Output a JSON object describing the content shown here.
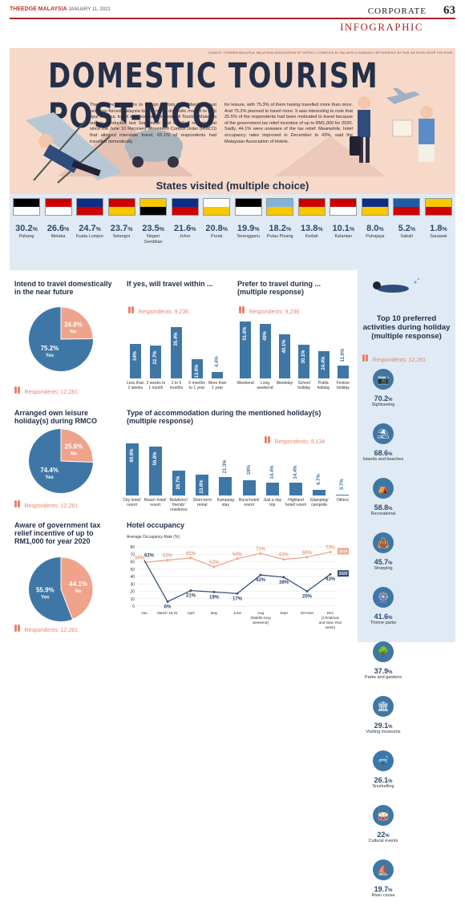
{
  "header": {
    "brand": "THEEDGE MALAYSIA",
    "date": "JANUARY 11, 2021",
    "section": "CORPORATE",
    "page": "63",
    "subsection": "INFOGRAPHIC"
  },
  "hero": {
    "credits": "SOURCE: TOURISM MALAYSIA, MALAYSIAN ASSOCIATION OF HOTELS  |  COMPILED BY NALANTH A GANDAM  |  INFOGRAPHIC BY NUR IZA MOHD NOOR THE EDGE",
    "title": "DOMESTIC TOURISM POST-MCO",
    "intro_col1": "The closure of borders to foreign tourists from March 18 last year has forced Malaysia to turn to the domestic market to help spur the tour, travel and hospitality industry. A Tourism Malaysia survey conducted last September and October reveals that since the June 10 Recovery Movement Control Order (RMCO) that allowed interstate travel, 65.1% of respondents had travelled domestically",
    "intro_col2": "for leisure, with 75.3% of them having travelled more than once. And 75.2% planned to travel more. It was interesting to note that 25.5% of the respondents had been motivated to travel because of the government tax relief incentive of up to RM1,000 for 2020. Sadly, 44.1% were unaware of the tax relief. Meanwhile, hotel occupancy rates improved in December to 43%, said the Malaysian Association of Hotels."
  },
  "states": {
    "title": "States visited (multiple choice)",
    "items": [
      {
        "pct": "30.2",
        "name": "Pahang",
        "flag": [
          "#000000",
          "#ffffff"
        ]
      },
      {
        "pct": "26.6",
        "name": "Melaka",
        "flag": [
          "#cc0000",
          "#ffffff"
        ]
      },
      {
        "pct": "24.7",
        "name": "Kuala Lumpur",
        "flag": [
          "#0a2f8a",
          "#cc0000"
        ]
      },
      {
        "pct": "23.7",
        "name": "Selangor",
        "flag": [
          "#cc0000",
          "#f6c800"
        ]
      },
      {
        "pct": "23.5",
        "name": "Negeri Sembilan",
        "flag": [
          "#f6c800",
          "#000000"
        ]
      },
      {
        "pct": "21.6",
        "name": "Johor",
        "flag": [
          "#0a2f8a",
          "#cc0000"
        ]
      },
      {
        "pct": "20.8",
        "name": "Perak",
        "flag": [
          "#ffffff",
          "#f6c800"
        ]
      },
      {
        "pct": "19.9",
        "name": "Terengganu",
        "flag": [
          "#000000",
          "#ffffff"
        ]
      },
      {
        "pct": "18.2",
        "name": "Pulau Pinang",
        "flag": [
          "#7fb4e0",
          "#f6c800"
        ]
      },
      {
        "pct": "13.8",
        "name": "Kedah",
        "flag": [
          "#cc0000",
          "#f6c800"
        ]
      },
      {
        "pct": "10.1",
        "name": "Kelantan",
        "flag": [
          "#cc0000",
          "#ffffff"
        ]
      },
      {
        "pct": "8.0",
        "name": "Putrajaya",
        "flag": [
          "#0a2f8a",
          "#f6c800"
        ]
      },
      {
        "pct": "5.2",
        "name": "Sabah",
        "flag": [
          "#1a5ea8",
          "#cc0000"
        ]
      },
      {
        "pct": "1.8",
        "name": "Sarawak",
        "flag": [
          "#f6c800",
          "#cc0000"
        ]
      }
    ]
  },
  "intend": {
    "title": "Intend to travel domestically in the near future",
    "yes_pct": "75.2%",
    "yes": "Yes",
    "no_pct": "24.8%",
    "no": "No",
    "respondents": "Respondents: 12,281"
  },
  "when": {
    "title": "If yes, will travel within ...",
    "respondents": "Respondents: 9,236"
  },
  "prefer": {
    "title": "Prefer to travel during ... (multiple response)",
    "respondents": "Respondents: 9,236"
  },
  "arranged": {
    "title": "Arranged own leisure holiday(s) during RMCO",
    "yes_pct": "74.4%",
    "yes": "Yes",
    "no_pct": "25.6%",
    "no": "No",
    "respondents": "Respondents: 12,281"
  },
  "accom": {
    "title": "Type of accommodation during the mentioned holiday(s) (multiple response)",
    "respondents": "Respondents: 9,134"
  },
  "aware": {
    "title": "Aware of government tax relief incentive of up to RM1,000 for year 2020",
    "yes_pct": "55.9%",
    "yes": "Yes",
    "no_pct": "44.1%",
    "no": "No",
    "respondents": "Respondents: 12,281"
  },
  "occupancy": {
    "title": "Hotel occupancy",
    "ylabel": "Average Occupancy Rate (%)"
  },
  "activities": {
    "title": "Top 10 preferred activities during holiday (multiple response)",
    "respondents": "Respondents: 12,281",
    "items": [
      {
        "pct": "70.2",
        "name": "Sightseeing",
        "icon": "camera-icon",
        "glyph": "📷"
      },
      {
        "pct": "68.6",
        "name": "Islands and beaches",
        "icon": "beach-icon",
        "glyph": "⛱"
      },
      {
        "pct": "58.8",
        "name": "Recreational",
        "icon": "tent-icon",
        "glyph": "⛺"
      },
      {
        "pct": "45.7",
        "name": "Shopping",
        "icon": "shopping-bag-icon",
        "glyph": "👜"
      },
      {
        "pct": "41.6",
        "name": "Theme parks",
        "icon": "ferris-wheel-icon",
        "glyph": "🎡"
      },
      {
        "pct": "37.9",
        "name": "Parks and gardens",
        "icon": "tree-icon",
        "glyph": "🌳"
      },
      {
        "pct": "29.1",
        "name": "Visiting museums",
        "icon": "museum-icon",
        "glyph": "🏛"
      },
      {
        "pct": "26.1",
        "name": "Snorkelling",
        "icon": "snorkel-icon",
        "glyph": "🤿"
      },
      {
        "pct": "22",
        "name": "Cultural events",
        "icon": "drum-icon",
        "glyph": "🥁"
      },
      {
        "pct": "19.7",
        "name": "River cruise",
        "icon": "boat-icon",
        "glyph": "⛵"
      }
    ]
  },
  "colors": {
    "blue": "#3e77a5",
    "salmon": "#f0a38b",
    "navy": "#24304a",
    "orange": "#f0a080"
  },
  "chart_data": [
    {
      "type": "bar",
      "title": "States visited (multiple choice)",
      "categories": [
        "Pahang",
        "Melaka",
        "Kuala Lumpur",
        "Selangor",
        "Negeri Sembilan",
        "Johor",
        "Perak",
        "Terengganu",
        "Pulau Pinang",
        "Kedah",
        "Kelantan",
        "Putrajaya",
        "Sabah",
        "Sarawak"
      ],
      "values": [
        30.2,
        26.6,
        24.7,
        23.7,
        23.5,
        21.6,
        20.8,
        19.9,
        18.2,
        13.8,
        10.1,
        8.0,
        5.2,
        1.8
      ]
    },
    {
      "type": "pie",
      "title": "Intend to travel domestically in the near future",
      "categories": [
        "Yes",
        "No"
      ],
      "values": [
        75.2,
        24.8
      ]
    },
    {
      "type": "bar",
      "title": "If yes, will travel within ...",
      "categories": [
        "Less than 2 weeks",
        "2 weeks to 1 month",
        "2 to 6 months",
        "6 months to 1 year",
        "More than 1 year"
      ],
      "values": [
        24,
        22.7,
        35.4,
        13.6,
        4.4
      ],
      "labels": [
        "24%",
        "22.7%",
        "35.4%",
        "13.6%",
        "4.4%"
      ]
    },
    {
      "type": "bar",
      "title": "Prefer to travel during ... (multiple response)",
      "categories": [
        "Weekend",
        "Long weekend",
        "Weekday",
        "School holiday",
        "Public holiday",
        "Festive holiday"
      ],
      "values": [
        51.6,
        49,
        40.1,
        30.1,
        24.4,
        11.6
      ],
      "labels": [
        "51.6%",
        "49%",
        "40.1%",
        "30.1%",
        "24.4%",
        "11.6%"
      ]
    },
    {
      "type": "pie",
      "title": "Arranged own leisure holiday(s) during RMCO",
      "categories": [
        "Yes",
        "No"
      ],
      "values": [
        74.4,
        25.6
      ]
    },
    {
      "type": "bar",
      "title": "Type of accommodation during the mentioned holiday(s) (multiple response)",
      "categories": [
        "City hotel/ resort",
        "Beach hotel/ resort",
        "Relatives'/ friends' residence",
        "Short-term rental",
        "Kampung stay",
        "Rural hotel/ resort",
        "Just a day trip",
        "Highland hotel/ resort",
        "Glamping/ campsite",
        "Others"
      ],
      "values": [
        60.8,
        56.8,
        28.7,
        23.8,
        21.3,
        18,
        14.4,
        14.4,
        6.7,
        0.7
      ],
      "labels": [
        "60.8%",
        "56.8%",
        "28.7%",
        "23.8%",
        "21.3%",
        "18%",
        "14.4%",
        "14.4%",
        "6.7%",
        "0.7%"
      ]
    },
    {
      "type": "pie",
      "title": "Aware of government tax relief incentive of up to RM1,000 for year 2020",
      "categories": [
        "Yes",
        "No"
      ],
      "values": [
        55.9,
        44.1
      ]
    },
    {
      "type": "line",
      "title": "Hotel occupancy",
      "ylabel": "Average Occupancy Rate (%)",
      "ylim": [
        0,
        80
      ],
      "yticks": [
        0,
        10,
        20,
        30,
        40,
        50,
        60,
        70,
        80
      ],
      "categories": [
        "Jan",
        "March 18-31",
        "April",
        "May",
        "June",
        "Aug (Middle-long weekend)",
        "Sept",
        "Oct-Nov",
        "Dec (Christmas and New Year week)"
      ],
      "series": [
        {
          "name": "2019",
          "values": [
            59,
            62,
            65,
            53,
            64,
            71,
            63,
            66,
            73
          ],
          "labels": [
            "59%",
            "62%",
            "65%",
            "53%",
            "64%",
            "71%",
            "63%",
            "66%",
            "73%"
          ]
        },
        {
          "name": "2020",
          "values": [
            62,
            6,
            21,
            19,
            17,
            42,
            39,
            20,
            43
          ],
          "labels": [
            "62%",
            "6%",
            "21%",
            "19%",
            "17%",
            "42%",
            "39%",
            "20%",
            "43%"
          ]
        }
      ]
    }
  ]
}
